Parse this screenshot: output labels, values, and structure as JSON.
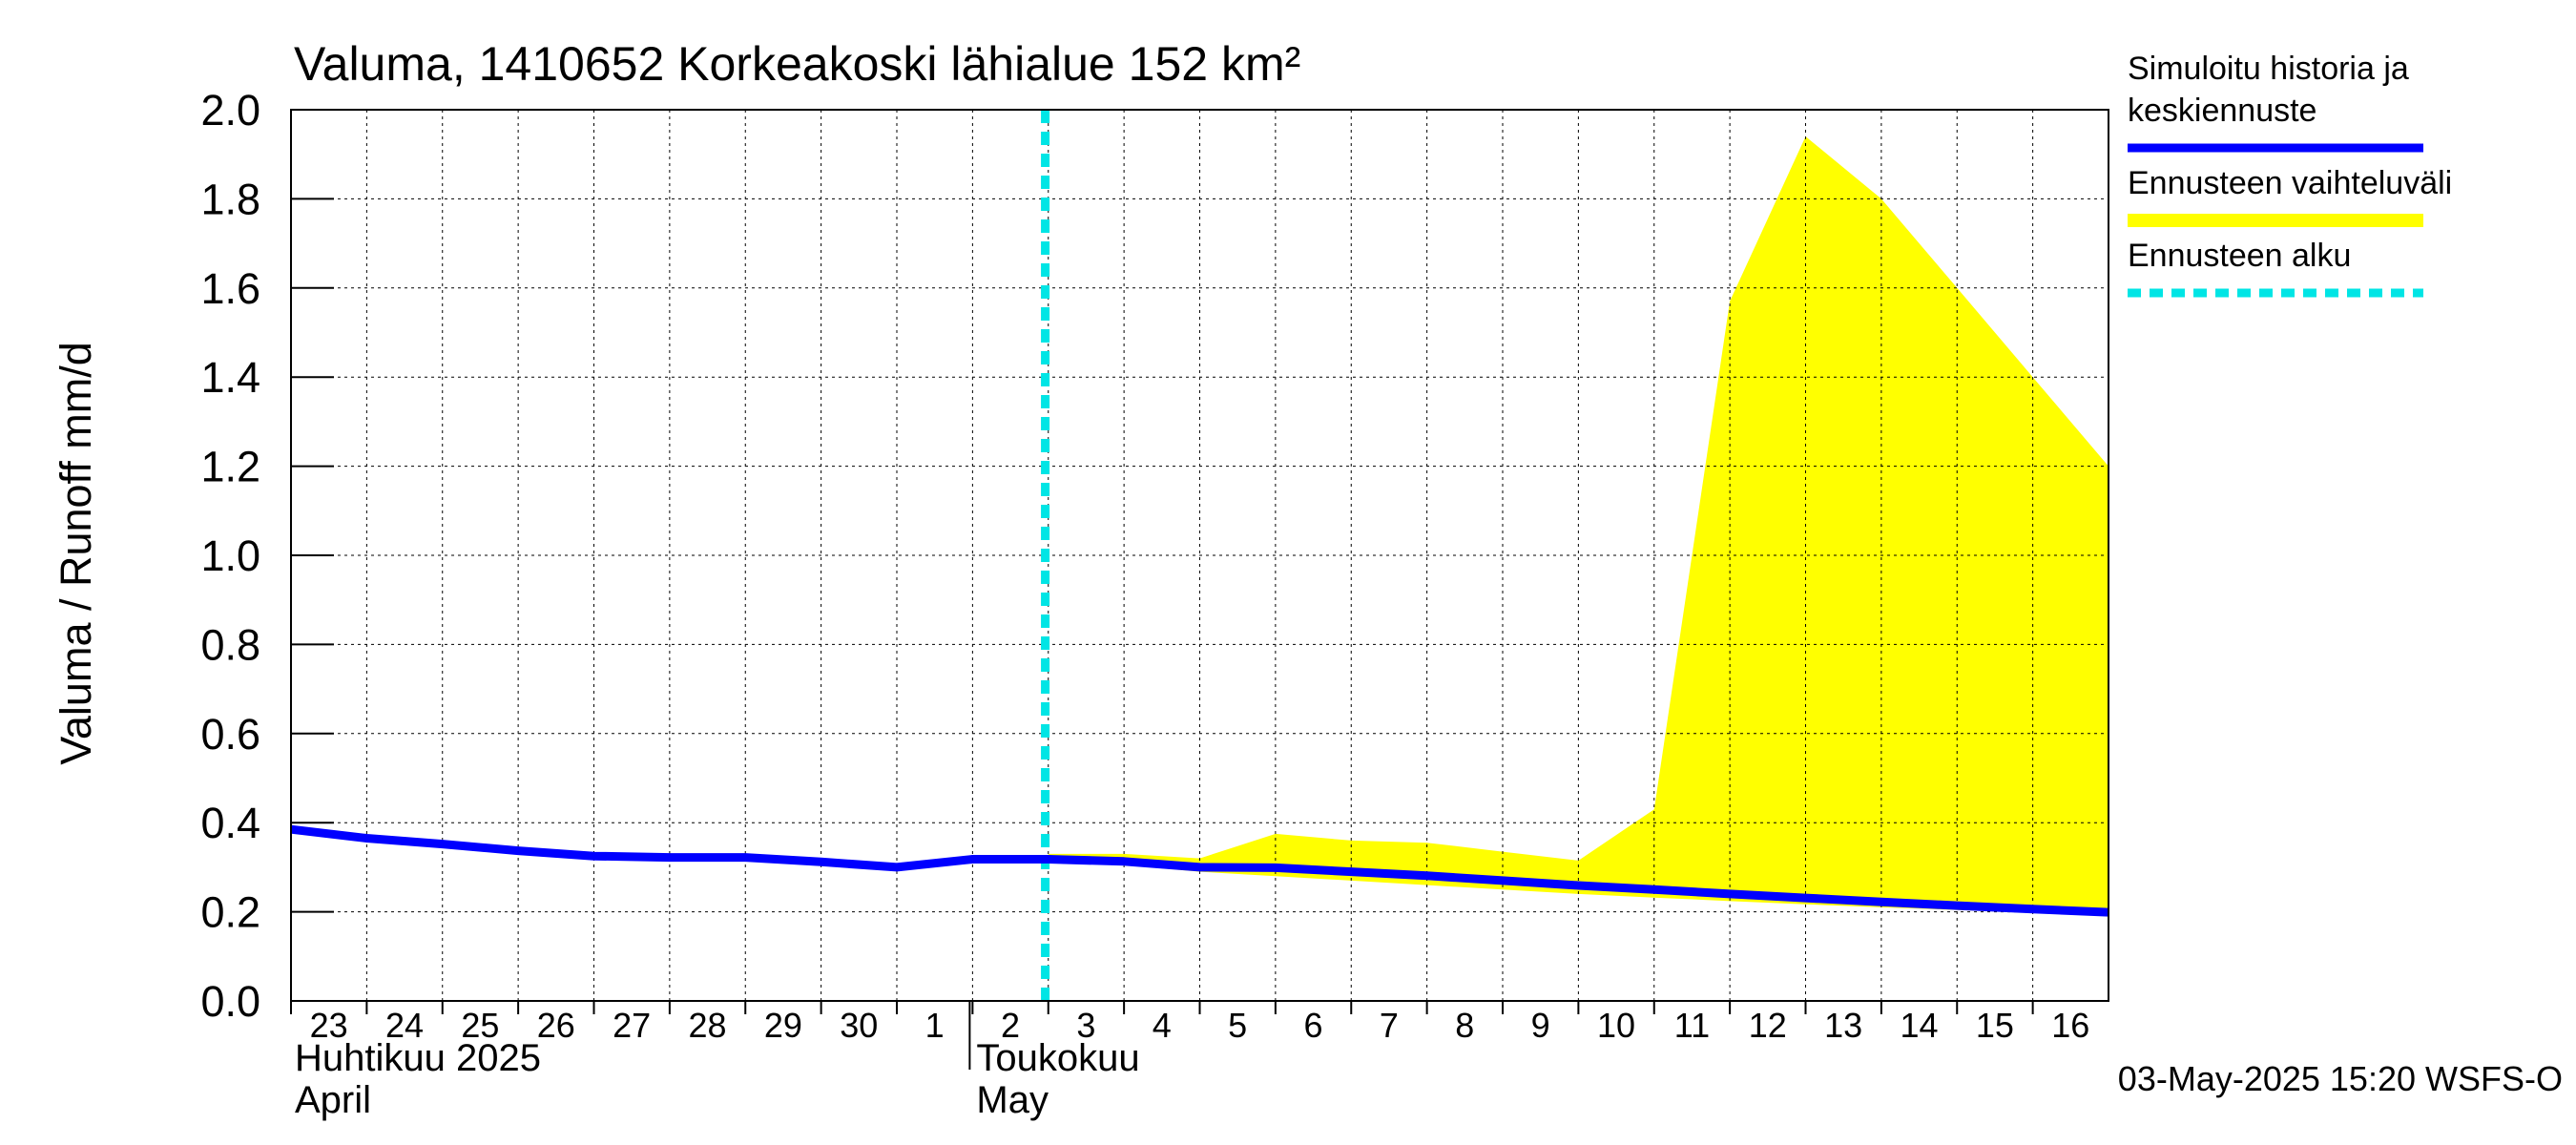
{
  "chart_data": {
    "type": "line",
    "title": "Valuma, 1410652 Korkeakoski lähialue 152 km²",
    "ylabel": "Valuma / Runoff    mm/d",
    "ylim": [
      0,
      2.0
    ],
    "yticks": [
      "0.0",
      "0.2",
      "0.4",
      "0.6",
      "0.8",
      "1.0",
      "1.2",
      "1.4",
      "1.6",
      "1.8",
      "2.0"
    ],
    "x_start": "2025-04-23",
    "x_end": "2025-05-17",
    "day_labels": [
      "23",
      "24",
      "25",
      "26",
      "27",
      "28",
      "29",
      "30",
      "1",
      "2",
      "3",
      "4",
      "5",
      "6",
      "7",
      "8",
      "9",
      "10",
      "11",
      "12",
      "13",
      "14",
      "15",
      "16"
    ],
    "month_labels": [
      {
        "line1": "Huhtikuu  2025",
        "line2": "April",
        "date": "2025-04-23"
      },
      {
        "line1": "Toukokuu",
        "line2": "May",
        "date": "2025-05-02"
      }
    ],
    "forecast_start": "2025-05-03",
    "series": [
      {
        "name": "Simuloitu historia ja keskiennuste",
        "color": "#0000ff",
        "points": [
          [
            "2025-04-23",
            0.385
          ],
          [
            "2025-04-24",
            0.365
          ],
          [
            "2025-04-25",
            0.352
          ],
          [
            "2025-04-26",
            0.337
          ],
          [
            "2025-04-27",
            0.325
          ],
          [
            "2025-04-28",
            0.322
          ],
          [
            "2025-04-29",
            0.322
          ],
          [
            "2025-04-30",
            0.312
          ],
          [
            "2025-05-01",
            0.3
          ],
          [
            "2025-05-02",
            0.318
          ],
          [
            "2025-05-03",
            0.318
          ],
          [
            "2025-05-04",
            0.313
          ],
          [
            "2025-05-05",
            0.3
          ],
          [
            "2025-05-06",
            0.299
          ],
          [
            "2025-05-07",
            0.29
          ],
          [
            "2025-05-08",
            0.281
          ],
          [
            "2025-05-09",
            0.27
          ],
          [
            "2025-05-10",
            0.259
          ],
          [
            "2025-05-11",
            0.25
          ],
          [
            "2025-05-12",
            0.24
          ],
          [
            "2025-05-13",
            0.231
          ],
          [
            "2025-05-14",
            0.222
          ],
          [
            "2025-05-15",
            0.214
          ],
          [
            "2025-05-16",
            0.206
          ],
          [
            "2025-05-17",
            0.199
          ]
        ]
      }
    ],
    "range": {
      "name": "Ennusteen vaihteluväli",
      "color": "#ffff00",
      "upper": [
        [
          "2025-05-03",
          0.33
        ],
        [
          "2025-05-04",
          0.33
        ],
        [
          "2025-05-05",
          0.32
        ],
        [
          "2025-05-06",
          0.375
        ],
        [
          "2025-05-07",
          0.36
        ],
        [
          "2025-05-08",
          0.355
        ],
        [
          "2025-05-09",
          0.335
        ],
        [
          "2025-05-10",
          0.315
        ],
        [
          "2025-05-11",
          0.43
        ],
        [
          "2025-05-12",
          1.57
        ],
        [
          "2025-05-13",
          1.94
        ],
        [
          "2025-05-14",
          1.8
        ],
        [
          "2025-05-15",
          1.6
        ],
        [
          "2025-05-16",
          1.4
        ],
        [
          "2025-05-17",
          1.2
        ]
      ],
      "lower": [
        [
          "2025-05-03",
          0.31
        ],
        [
          "2025-05-04",
          0.305
        ],
        [
          "2025-05-05",
          0.29
        ],
        [
          "2025-05-06",
          0.28
        ],
        [
          "2025-05-07",
          0.27
        ],
        [
          "2025-05-08",
          0.26
        ],
        [
          "2025-05-09",
          0.25
        ],
        [
          "2025-05-10",
          0.24
        ],
        [
          "2025-05-11",
          0.232
        ],
        [
          "2025-05-12",
          0.224
        ],
        [
          "2025-05-13",
          0.217
        ],
        [
          "2025-05-14",
          0.21
        ],
        [
          "2025-05-15",
          0.204
        ],
        [
          "2025-05-16",
          0.198
        ],
        [
          "2025-05-17",
          0.193
        ]
      ]
    },
    "legend": {
      "placement": "right",
      "items": [
        {
          "label_lines": [
            "Simuloitu historia ja",
            "keskiennuste"
          ],
          "color": "#0000ff",
          "style": "solid"
        },
        {
          "label_lines": [
            "Ennusteen vaihteluväli"
          ],
          "color": "#ffff00",
          "style": "solid"
        },
        {
          "label_lines": [
            "Ennusteen alku"
          ],
          "color": "#00e5e5",
          "style": "dashed"
        }
      ]
    },
    "grid": true,
    "footer": "03-May-2025 15:20 WSFS-O"
  }
}
